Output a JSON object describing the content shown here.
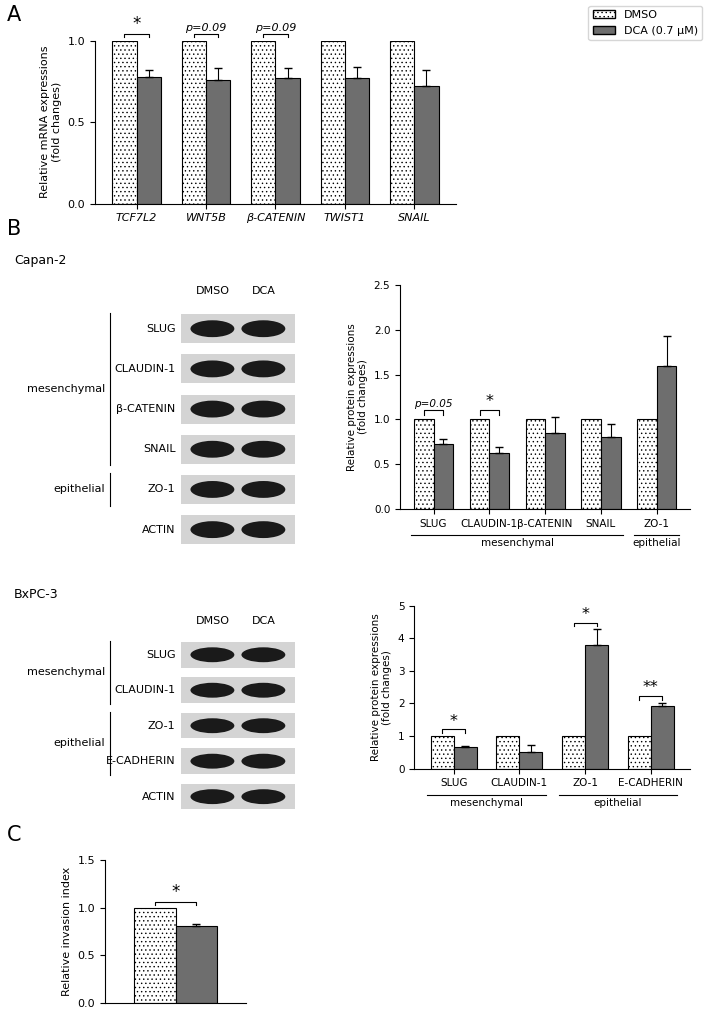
{
  "panel_labels": [
    "A",
    "B",
    "C"
  ],
  "chart_data": [
    {
      "type": "bar",
      "y_label": "Relative mRNA expressions\n(fold changes)",
      "categories": [
        "TCF7L2",
        "WNT5B",
        "β-CATENIN",
        "TWIST1",
        "SNAIL"
      ],
      "series": [
        {
          "name": "DMSO",
          "color": "#ffffff",
          "values": [
            1.0,
            1.0,
            1.0,
            1.0,
            1.0
          ],
          "errors": [
            null,
            null,
            null,
            null,
            null
          ]
        },
        {
          "name": "DCA (0.7 µM)",
          "color": "#6e6e6e",
          "values": [
            0.78,
            0.76,
            0.77,
            0.77,
            0.72
          ],
          "errors": [
            0.04,
            0.07,
            0.06,
            0.07,
            0.1
          ]
        }
      ],
      "ylim": [
        0.0,
        1.0
      ],
      "yticks": [
        0.0,
        0.5,
        1.0
      ],
      "legend": "upper right",
      "annotations": [
        {
          "category": "TCF7L2",
          "text": "*"
        },
        {
          "category": "WNT5B",
          "text": "p=0.09"
        },
        {
          "category": "β-CATENIN",
          "text": "p=0.09"
        }
      ]
    },
    {
      "type": "bar",
      "y_label": "Relative protein expressions\n(fold changes)",
      "categories": [
        "SLUG",
        "CLAUDIN-1",
        "β-CATENIN",
        "SNAIL",
        "ZO-1"
      ],
      "series": [
        {
          "name": "DMSO",
          "color": "#ffffff",
          "values": [
            1.0,
            1.0,
            1.0,
            1.0,
            1.0
          ],
          "errors": [
            null,
            null,
            null,
            null,
            null
          ]
        },
        {
          "name": "DCA (0.7 µM)",
          "color": "#6e6e6e",
          "values": [
            0.72,
            0.63,
            0.85,
            0.8,
            1.6
          ],
          "errors": [
            0.06,
            0.06,
            0.18,
            0.15,
            0.33
          ]
        }
      ],
      "ylim": [
        0.0,
        2.5
      ],
      "yticks": [
        0.0,
        0.5,
        1.0,
        1.5,
        2.0,
        2.5
      ],
      "annotations": [
        {
          "category": "SLUG",
          "text": "p=0.05"
        },
        {
          "category": "CLAUDIN-1",
          "text": "*"
        }
      ],
      "groups": [
        {
          "label": "mesenchymal",
          "categories": [
            "SLUG",
            "CLAUDIN-1",
            "β-CATENIN",
            "SNAIL"
          ]
        },
        {
          "label": "epithelial",
          "categories": [
            "ZO-1"
          ]
        }
      ]
    },
    {
      "type": "bar",
      "y_label": "Relative protein expressions\n(fold changes)",
      "categories": [
        "SLUG",
        "CLAUDIN-1",
        "ZO-1",
        "E-CADHERIN"
      ],
      "series": [
        {
          "name": "DMSO",
          "color": "#ffffff",
          "values": [
            1.0,
            1.0,
            1.0,
            1.0
          ],
          "errors": [
            null,
            null,
            null,
            null
          ]
        },
        {
          "name": "DCA (0.7 µM)",
          "color": "#6e6e6e",
          "values": [
            0.65,
            0.5,
            3.78,
            1.92
          ],
          "errors": [
            0.05,
            0.22,
            0.5,
            0.1
          ]
        }
      ],
      "ylim": [
        0,
        5
      ],
      "yticks": [
        0,
        1,
        2,
        3,
        4,
        5
      ],
      "annotations": [
        {
          "category": "SLUG",
          "text": "*"
        },
        {
          "category": "ZO-1",
          "text": "*"
        },
        {
          "category": "E-CADHERIN",
          "text": "**"
        }
      ],
      "groups": [
        {
          "label": "mesenchymal",
          "categories": [
            "SLUG",
            "CLAUDIN-1"
          ]
        },
        {
          "label": "epithelial",
          "categories": [
            "ZO-1",
            "E-CADHERIN"
          ]
        }
      ]
    },
    {
      "type": "bar",
      "y_label": "Relative invasion index",
      "categories": [
        null
      ],
      "series": [
        {
          "name": "DMSO",
          "color": "#ffffff",
          "values": [
            1.0
          ],
          "errors": [
            null
          ]
        },
        {
          "name": "DCA (0.7 µM)",
          "color": "#6e6e6e",
          "values": [
            0.81
          ],
          "errors": [
            0.02
          ]
        }
      ],
      "ylim": [
        0.0,
        1.5
      ],
      "yticks": [
        0.0,
        0.5,
        1.0,
        1.5
      ],
      "tick_labels": "y",
      "annotations": [
        {
          "category": null,
          "text": "*"
        }
      ]
    }
  ],
  "blots": [
    {
      "title": "Capan-2",
      "columns": [
        "DMSO",
        "DCA"
      ],
      "rows": [
        "SLUG",
        "CLAUDIN-1",
        "β-CATENIN",
        "SNAIL",
        "ZO-1",
        "ACTIN"
      ],
      "groups": [
        {
          "label": "mesenchymal",
          "rows": [
            "SLUG",
            "CLAUDIN-1",
            "β-CATENIN",
            "SNAIL"
          ]
        },
        {
          "label": "epithelial",
          "rows": [
            "ZO-1"
          ]
        }
      ]
    },
    {
      "title": "BxPC-3",
      "columns": [
        "DMSO",
        "DCA"
      ],
      "rows": [
        "SLUG",
        "CLAUDIN-1",
        "ZO-1",
        "E-CADHERIN",
        "ACTIN"
      ],
      "groups": [
        {
          "label": "mesenchymal",
          "rows": [
            "SLUG",
            "CLAUDIN-1"
          ]
        },
        {
          "label": "epithelial",
          "rows": [
            "ZO-1",
            "E-CADHERIN"
          ]
        }
      ]
    }
  ]
}
